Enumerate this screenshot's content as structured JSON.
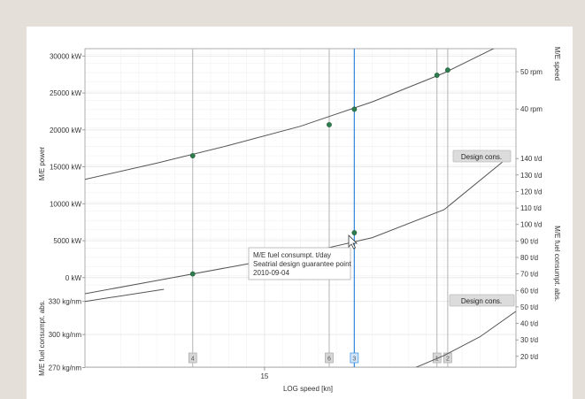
{
  "left_axes": {
    "power": {
      "title": "M/E power",
      "ticks": [
        {
          "value": 30000,
          "label": "30000 kW"
        },
        {
          "value": 25000,
          "label": "25000 kW"
        },
        {
          "value": 20000,
          "label": "20000 kW"
        },
        {
          "value": 15000,
          "label": "15000 kW"
        },
        {
          "value": 10000,
          "label": "10000 kW"
        },
        {
          "value": 5000,
          "label": "5000 kW"
        },
        {
          "value": 0,
          "label": "0 kW"
        }
      ]
    },
    "fuel_abs": {
      "title": "M/E fuel consumpt. abs.",
      "ticks": [
        {
          "value": 330,
          "label": "330 kg/nm"
        },
        {
          "value": 300,
          "label": "300 kg/nm"
        },
        {
          "value": 270,
          "label": "270 kg/nm"
        }
      ]
    }
  },
  "right_axes": {
    "speed": {
      "title": "M/E speed",
      "ticks": [
        {
          "value": 50,
          "label": "50 rpm"
        },
        {
          "value": 40,
          "label": "40 rpm"
        }
      ]
    },
    "fuel_day": {
      "title": "M/E fuel consumpt. abs.",
      "ticks": [
        {
          "value": 140,
          "label": "140 t/d"
        },
        {
          "value": 130,
          "label": "130 t/d"
        },
        {
          "value": 120,
          "label": "120 t/d"
        },
        {
          "value": 110,
          "label": "110 t/d"
        },
        {
          "value": 100,
          "label": "100 t/d"
        },
        {
          "value": 90,
          "label": "90 t/d"
        },
        {
          "value": 80,
          "label": "80 t/d"
        },
        {
          "value": 70,
          "label": "70 t/d"
        },
        {
          "value": 60,
          "label": "60 t/d"
        },
        {
          "value": 50,
          "label": "50 t/d"
        },
        {
          "value": 40,
          "label": "40 t/d"
        },
        {
          "value": 30,
          "label": "30 t/d"
        },
        {
          "value": 20,
          "label": "20 t/d"
        }
      ]
    }
  },
  "x_axis": {
    "title": "LOG speed [kn]",
    "ticks": [
      {
        "value": 15,
        "label": "15"
      }
    ]
  },
  "buttons": {
    "design_cons_upper": "Design cons.",
    "design_cons_lower": "Design cons."
  },
  "markers": [
    {
      "label": "4",
      "x": 14.0,
      "selected": false
    },
    {
      "label": "6",
      "x": 15.9,
      "selected": false
    },
    {
      "label": "3",
      "x": 16.25,
      "selected": true
    },
    {
      "label": "1",
      "x": 17.4,
      "selected": false
    },
    {
      "label": "2",
      "x": 17.55,
      "selected": false
    }
  ],
  "tooltip": {
    "line1": "M/E fuel consumpt. t/day",
    "line2": "Seatrial design guarantee point",
    "line3": "2010-09-04"
  },
  "chart_data": {
    "type": "line",
    "x_range": [
      12.5,
      18.5
    ],
    "power_curve": {
      "x": [
        12.5,
        13.5,
        14.5,
        15.5,
        16.5,
        17.5,
        18.5
      ],
      "y": [
        13300,
        15500,
        17900,
        20500,
        23800,
        27700,
        32500
      ]
    },
    "power_points": {
      "x": [
        14.0,
        15.9,
        16.25,
        17.4,
        17.55
      ],
      "y": [
        16500,
        20700,
        22800,
        27400,
        28100
      ]
    },
    "fuel_day_curve": {
      "x": [
        12.5,
        13.5,
        14.5,
        15.5,
        16.5,
        17.5,
        18.4
      ],
      "y": [
        58,
        66,
        74,
        82,
        92,
        109,
        141
      ]
    },
    "fuel_day_points": {
      "x": [
        14.0,
        16.25
      ],
      "y": [
        70,
        95
      ]
    },
    "fuel_abs_curve": {
      "x": [
        17.1,
        17.5,
        18.0,
        18.5
      ],
      "y": [
        270,
        281,
        298,
        321
      ]
    },
    "fuel_abs_segment": {
      "x": [
        12.5,
        13.6
      ],
      "y": [
        330,
        341
      ]
    },
    "power_ylim": [
      -1700,
      30400
    ],
    "fuel_day_ylim": [
      14,
      146
    ],
    "fuel_abs_ylim": [
      268,
      345
    ],
    "speed_ylim": [
      36,
      55
    ]
  }
}
